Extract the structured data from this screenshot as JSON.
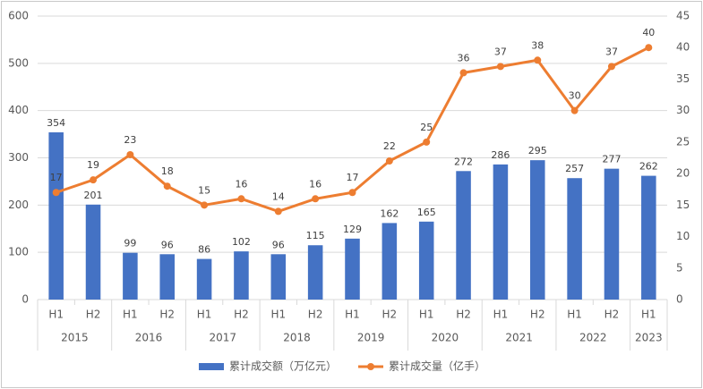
{
  "chart_data": {
    "type": "bar-line",
    "groups": [
      {
        "name": "2015",
        "categories": [
          "H1",
          "H2"
        ]
      },
      {
        "name": "2016",
        "categories": [
          "H1",
          "H2"
        ]
      },
      {
        "name": "2017",
        "categories": [
          "H1",
          "H2"
        ]
      },
      {
        "name": "2018",
        "categories": [
          "H1",
          "H2"
        ]
      },
      {
        "name": "2019",
        "categories": [
          "H1",
          "H2"
        ]
      },
      {
        "name": "2020",
        "categories": [
          "H1",
          "H2"
        ]
      },
      {
        "name": "2021",
        "categories": [
          "H1",
          "H2"
        ]
      },
      {
        "name": "2022",
        "categories": [
          "H1",
          "H2"
        ]
      },
      {
        "name": "2023",
        "categories": [
          "H1"
        ]
      }
    ],
    "series": [
      {
        "name": "累计成交额（万亿元）",
        "type": "bar",
        "color": "#4472c4",
        "values": [
          354,
          201,
          99,
          96,
          86,
          102,
          96,
          115,
          129,
          162,
          165,
          272,
          286,
          295,
          257,
          277,
          262
        ]
      },
      {
        "name": "累计成交量（亿手）",
        "type": "line",
        "axis": "y2",
        "color": "#ed7d31",
        "values": [
          17,
          19,
          23,
          18,
          15,
          16,
          14,
          16,
          17,
          22,
          25,
          36,
          37,
          38,
          30,
          37,
          40
        ]
      }
    ],
    "ylim": [
      0,
      600
    ],
    "yticks": [
      0,
      100,
      200,
      300,
      400,
      500,
      600
    ],
    "y2lim": [
      0,
      45
    ],
    "y2ticks": [
      0,
      5,
      10,
      15,
      20,
      25,
      30,
      35,
      40,
      45
    ],
    "grid": true,
    "legend": "bottom"
  }
}
